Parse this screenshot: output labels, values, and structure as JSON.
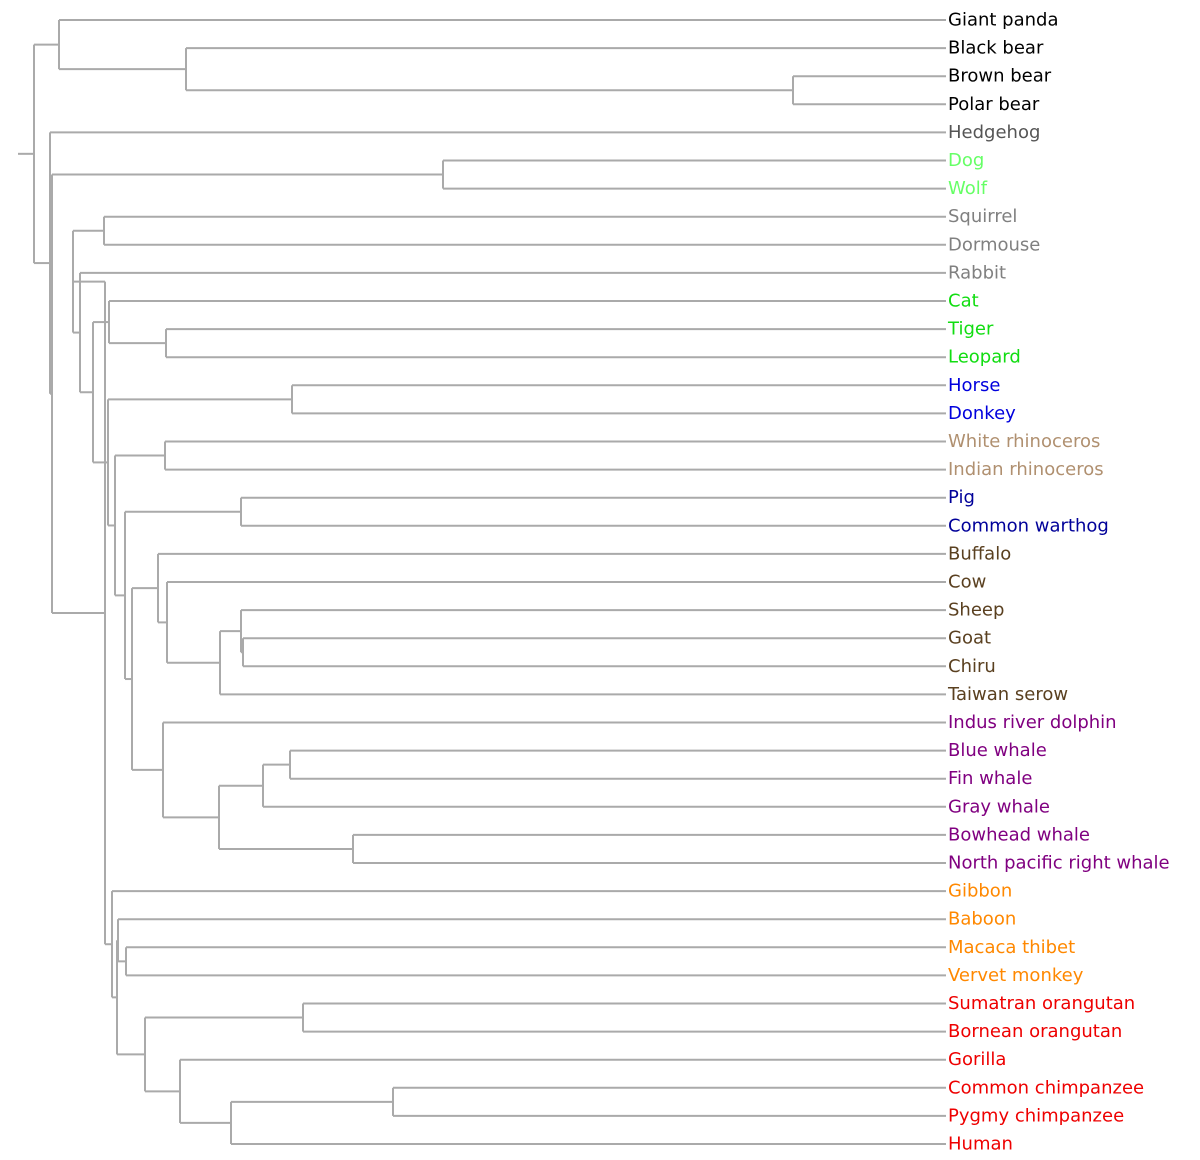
{
  "tree": {
    "colors": {
      "black": "#000000",
      "gray_dark": "#555555",
      "green_light": "#66ff66",
      "gray": "#808080",
      "green": "#11dd11",
      "blue": "#0000dd",
      "tan": "#b09070",
      "navy": "#000099",
      "brown": "#5a4020",
      "purple": "#800080",
      "orange": "#ff8800",
      "red": "#ee0000",
      "branch": "#aaaaaa"
    },
    "leaves": [
      {
        "name": "Giant panda",
        "color": "black"
      },
      {
        "name": "Black bear",
        "color": "black"
      },
      {
        "name": "Brown bear",
        "color": "black"
      },
      {
        "name": "Polar bear",
        "color": "black"
      },
      {
        "name": "Hedgehog",
        "color": "gray_dark"
      },
      {
        "name": "Dog",
        "color": "green_light"
      },
      {
        "name": "Wolf",
        "color": "green_light"
      },
      {
        "name": "Squirrel",
        "color": "gray"
      },
      {
        "name": "Dormouse",
        "color": "gray"
      },
      {
        "name": "Rabbit",
        "color": "gray"
      },
      {
        "name": "Cat",
        "color": "green"
      },
      {
        "name": "Tiger",
        "color": "green"
      },
      {
        "name": "Leopard",
        "color": "green"
      },
      {
        "name": "Horse",
        "color": "blue"
      },
      {
        "name": "Donkey",
        "color": "blue"
      },
      {
        "name": "White rhinoceros",
        "color": "tan"
      },
      {
        "name": "Indian rhinoceros",
        "color": "tan"
      },
      {
        "name": "Pig",
        "color": "navy"
      },
      {
        "name": "Common warthog",
        "color": "navy"
      },
      {
        "name": "Buffalo",
        "color": "brown"
      },
      {
        "name": "Cow",
        "color": "brown"
      },
      {
        "name": "Sheep",
        "color": "brown"
      },
      {
        "name": "Goat",
        "color": "brown"
      },
      {
        "name": "Chiru",
        "color": "brown"
      },
      {
        "name": "Taiwan serow",
        "color": "brown"
      },
      {
        "name": "Indus river dolphin",
        "color": "purple"
      },
      {
        "name": "Blue whale",
        "color": "purple"
      },
      {
        "name": "Fin whale",
        "color": "purple"
      },
      {
        "name": "Gray whale",
        "color": "purple"
      },
      {
        "name": "Bowhead whale",
        "color": "purple"
      },
      {
        "name": "North pacific right whale",
        "color": "purple"
      },
      {
        "name": "Gibbon",
        "color": "orange"
      },
      {
        "name": "Baboon",
        "color": "orange"
      },
      {
        "name": "Macaca thibet",
        "color": "orange"
      },
      {
        "name": "Vervet monkey",
        "color": "orange"
      },
      {
        "name": "Sumatran orangutan",
        "color": "red"
      },
      {
        "name": "Bornean orangutan",
        "color": "red"
      },
      {
        "name": "Gorilla",
        "color": "red"
      },
      {
        "name": "Common chimpanzee",
        "color": "red"
      },
      {
        "name": "Pygmy chimpanzee",
        "color": "red"
      },
      {
        "name": "Human",
        "color": "red"
      }
    ],
    "newick": "(((Giant panda,(Black bear,(Brown bear,Polar bear))),(Hedgehog,((Dog,Wolf),(((Squirrel,Dormouse),(Rabbit,((Cat,(Tiger,Leopard)),((Horse,Donkey),((White rhinoceros,Indian rhinoceros),((Pig,Common warthog),((Buffalo,(Cow,((Sheep,(Goat,Chiru)),Taiwan serow))),(Indus river dolphin,(((Blue whale,Fin whale),Gray whale),(Bowhead whale,North pacific right whale)))))))))),(Gibbon,((Baboon,(Macaca thibet,Vervet monkey)),((Sumatran orangutan,Bornean orangutan),(Gorilla,((Common chimpanzee,Pygmy chimpanzee),Human)))))))))"
  }
}
